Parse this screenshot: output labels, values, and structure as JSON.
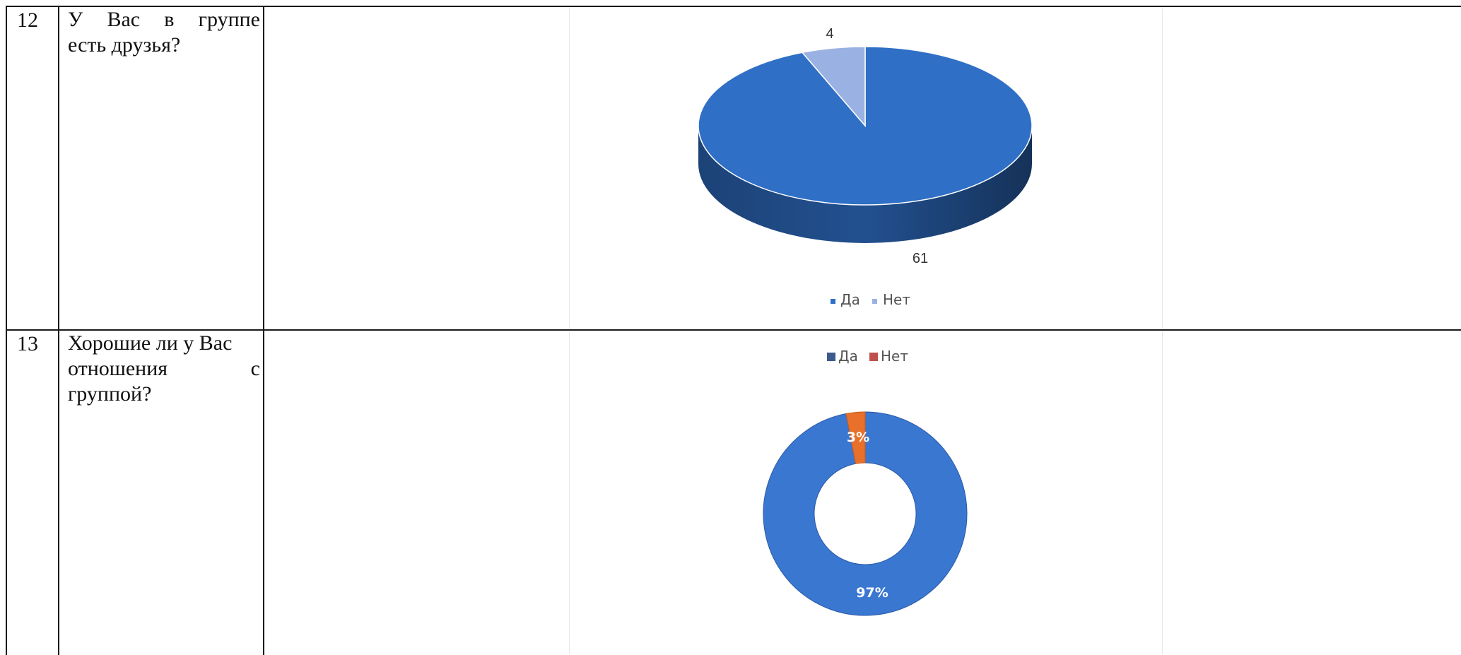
{
  "table": {
    "rows": [
      {
        "number": "12",
        "question_lines": [
          "У Вас в группе",
          "есть друзья?"
        ],
        "chart_index": 0
      },
      {
        "number": "13",
        "question_lines": [
          "Хорошие ли у Вас",
          "отношения с",
          "группой?"
        ],
        "chart_index": 1
      }
    ]
  },
  "chart_data": [
    {
      "type": "pie",
      "style": "3d",
      "categories": [
        "Да",
        "Нет"
      ],
      "values": [
        61,
        4
      ],
      "data_labels": [
        "61",
        "4"
      ],
      "colors": [
        "#2f6fc6",
        "#9ab1e3"
      ],
      "legend": {
        "position": "bottom",
        "entries": [
          "Да",
          "Нет"
        ]
      }
    },
    {
      "type": "pie",
      "style": "donut",
      "categories": [
        "Да",
        "Нет"
      ],
      "values": [
        97,
        3
      ],
      "data_labels": [
        "97%",
        "3%"
      ],
      "colors": [
        "#3a77d0",
        "#e8702a"
      ],
      "legend": {
        "position": "top",
        "entries": [
          "Да",
          "Нет"
        ],
        "swatch_colors": [
          "#3d5a8c",
          "#c0504d"
        ]
      }
    }
  ]
}
